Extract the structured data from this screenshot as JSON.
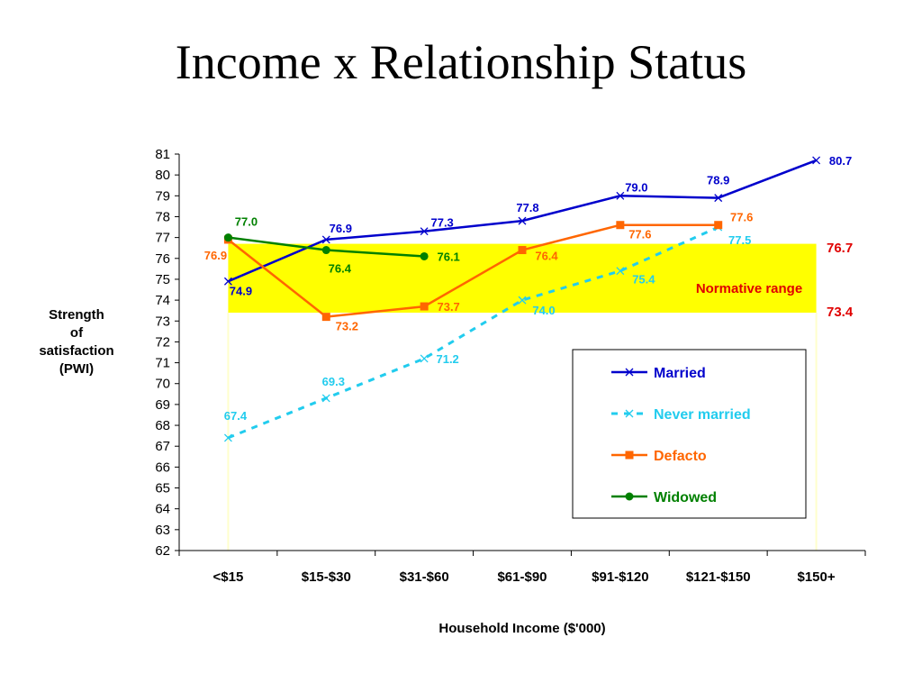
{
  "slide": {
    "title": "Income x Relationship Status"
  },
  "chart_data": {
    "type": "line",
    "title": "Income x Relationship Status",
    "xlabel": "Household Income ($'000)",
    "ylabel_lines": [
      "Strength",
      "of",
      "satisfaction",
      "(PWI)"
    ],
    "ylim": [
      62,
      81
    ],
    "yticks": [
      62,
      63,
      64,
      65,
      66,
      67,
      68,
      69,
      70,
      71,
      72,
      73,
      74,
      75,
      76,
      77,
      78,
      79,
      80,
      81
    ],
    "categories": [
      "<$15",
      "$15-$30",
      "$31-$60",
      "$61-$90",
      "$91-$120",
      "$121-$150",
      "$150+"
    ],
    "normative_range": {
      "low": 73.4,
      "high": 76.7,
      "label": "Normative range",
      "low_label": "73.4",
      "high_label": "76.7",
      "color": "#ffff00",
      "label_color": "#e00000"
    },
    "series": [
      {
        "name": "Married",
        "color": "#0000cc",
        "dash": false,
        "marker": "x",
        "values": [
          74.9,
          76.9,
          77.3,
          77.8,
          79.0,
          78.9,
          80.7
        ],
        "labels": [
          "74.9",
          "76.9",
          "77.3",
          "77.8",
          "79.0",
          "78.9",
          "80.7"
        ]
      },
      {
        "name": "Never married",
        "color": "#22ccee",
        "dash": true,
        "marker": "x",
        "values": [
          67.4,
          69.3,
          71.2,
          74.0,
          75.4,
          77.5,
          null
        ],
        "labels": [
          "67.4",
          "69.3",
          "71.2",
          "74.0",
          "75.4",
          "77.5",
          null
        ]
      },
      {
        "name": "Defacto",
        "color": "#ff6600",
        "dash": false,
        "marker": "square",
        "values": [
          76.9,
          73.2,
          73.7,
          76.4,
          77.6,
          77.6,
          null
        ],
        "labels": [
          "76.9",
          "73.2",
          "73.7",
          "76.4",
          "77.6",
          "77.6",
          null
        ]
      },
      {
        "name": "Widowed",
        "color": "#008000",
        "dash": false,
        "marker": "circle",
        "values": [
          77.0,
          76.4,
          76.1,
          null,
          null,
          null,
          null
        ],
        "labels": [
          "77.0",
          "76.4",
          "76.1",
          null,
          null,
          null,
          null
        ]
      }
    ],
    "legend_position": "lower-right",
    "grid": false
  }
}
